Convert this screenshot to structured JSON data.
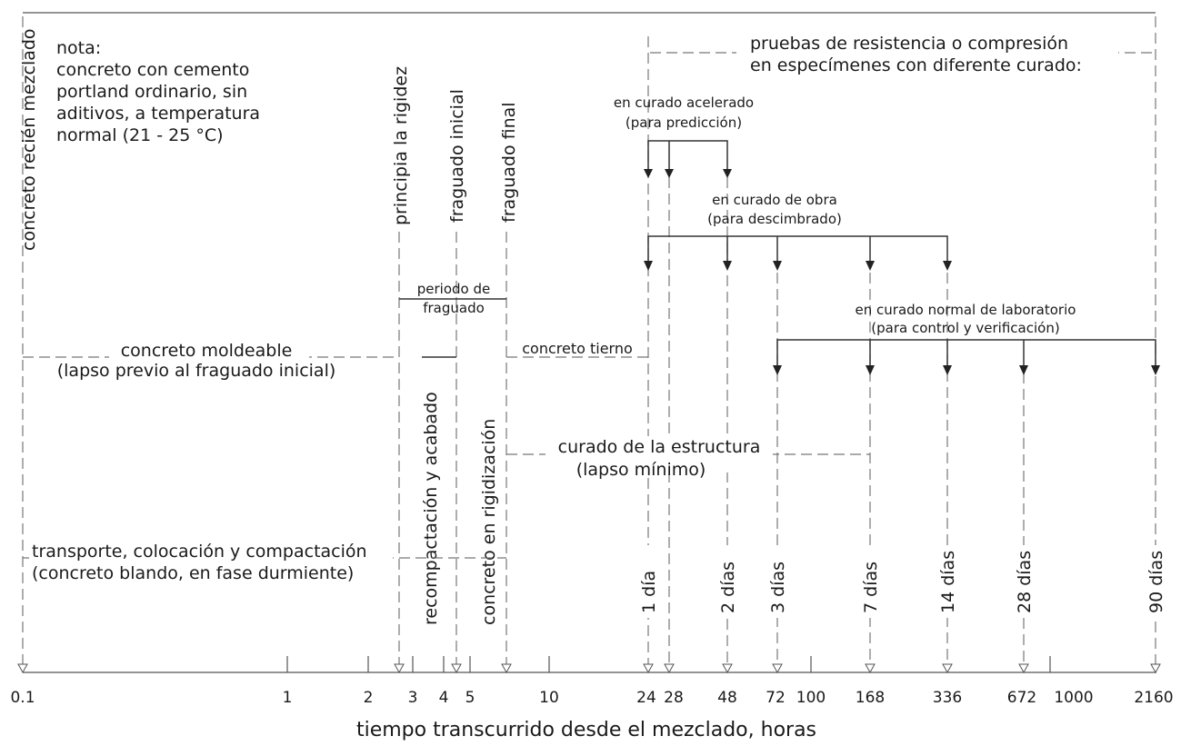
{
  "axis": {
    "title": "tiempo transcurrido desde el mezclado, horas",
    "ticks": [
      "0.1",
      "1",
      "2",
      "3",
      "4",
      "5",
      "10",
      "24",
      "28",
      "48",
      "72",
      "100",
      "168",
      "336",
      "672",
      "1000",
      "2160"
    ]
  },
  "note": {
    "lines": [
      "nota:",
      "concreto con cemento",
      "portland ordinario, sin",
      "aditivos, a temperatura",
      "normal (21 - 25  °C)"
    ]
  },
  "milestones": {
    "mixed": "concreto recién mezclado",
    "stiffening": "principia la rigidez",
    "initial_set": "fraguado inicial",
    "final_set": "fraguado final"
  },
  "strength_tests": {
    "title_line1": "pruebas de resistencia o compresión",
    "title_line2": "en especímenes con diferente curado:"
  },
  "accelerated": {
    "line1": "en curado acelerado",
    "line2": "(para predicción)"
  },
  "site_curing": {
    "line1": "en curado de obra",
    "line2": "(para descimbrado)"
  },
  "lab_curing": {
    "line1": "en curado normal de laboratorio",
    "line2": "(para control y verificación)"
  },
  "setting_period": {
    "line1": "periodo de",
    "line2": "fraguado"
  },
  "moldable": {
    "line1": "concreto moldeable",
    "line2": "(lapso previo al fraguado inicial)"
  },
  "green_concrete": "concreto tierno",
  "structure_curing": {
    "line1": "curado de la estructura",
    "line2": "(lapso mínimo)"
  },
  "recompaction": "recompactación y acabado",
  "stiffening_concrete": "concreto en rigidización",
  "transport": {
    "line1": "transporte, colocación y compactación",
    "line2": "(concreto blando, en fase durmiente)"
  },
  "ages": [
    "1 día",
    "2 días",
    "3 días",
    "7 días",
    "14 días",
    "28 días",
    "90 días"
  ]
}
